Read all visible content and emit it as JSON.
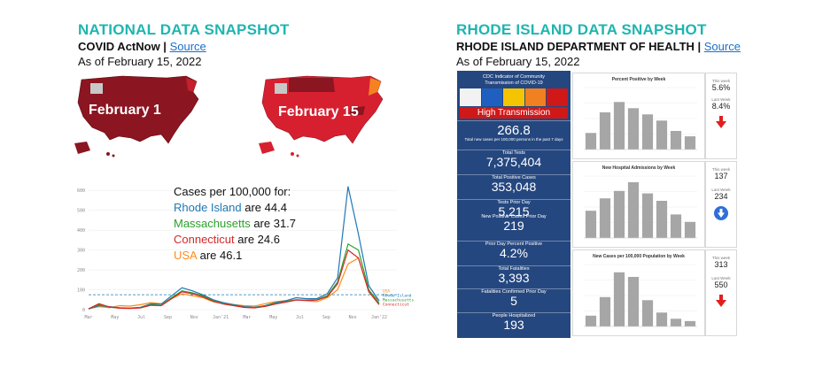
{
  "national": {
    "title": "NATIONAL DATA SNAPSHOT",
    "source_prefix": "COVID ActNow | ",
    "source_link": "Source",
    "as_of": "As of February 15, 2022",
    "map1_label": "February 1",
    "map2_label": "February 15",
    "legend_heading": "Cases per 100,000 for:",
    "legend": [
      {
        "state": "Rhode Island",
        "suffix": " are 44.4",
        "color": "#1f78b4"
      },
      {
        "state": "Massachusetts",
        "suffix": " are 31.7",
        "color": "#2ca02c"
      },
      {
        "state": "Connecticut",
        "suffix": " are 24.6",
        "color": "#d62728"
      },
      {
        "state": "USA",
        "suffix": " are 46.1",
        "color": "#ff8c1a"
      }
    ]
  },
  "chart_data": [
    {
      "type": "line",
      "title": "",
      "x_ticks": [
        "Mar",
        "May",
        "Jul",
        "Sep",
        "Nov",
        "Jan'21",
        "Mar",
        "May",
        "Jul",
        "Sep",
        "Nov",
        "Jan'22"
      ],
      "y_ticks": [
        "0",
        "100",
        "200",
        "300",
        "400",
        "500",
        "600"
      ],
      "ylim": [
        0,
        650
      ],
      "series": [
        {
          "name": "USA",
          "color": "#ff8c1a",
          "values": [
            5,
            15,
            10,
            20,
            18,
            25,
            35,
            30,
            55,
            80,
            70,
            60,
            40,
            30,
            25,
            20,
            18,
            30,
            40,
            45,
            50,
            45,
            40,
            60,
            100,
            230,
            260,
            90,
            46
          ]
        },
        {
          "name": "Rhode Island",
          "color": "#1f78b4",
          "values": [
            3,
            20,
            15,
            10,
            8,
            12,
            30,
            28,
            70,
            110,
            95,
            75,
            50,
            35,
            25,
            15,
            12,
            20,
            35,
            45,
            60,
            55,
            55,
            80,
            160,
            620,
            380,
            120,
            44
          ]
        },
        {
          "name": "Massachusetts",
          "color": "#2ca02c",
          "values": [
            4,
            25,
            12,
            8,
            7,
            10,
            25,
            22,
            60,
            95,
            85,
            70,
            45,
            30,
            22,
            12,
            10,
            18,
            30,
            40,
            50,
            48,
            50,
            70,
            140,
            330,
            300,
            100,
            32
          ]
        },
        {
          "name": "Connecticut",
          "color": "#d62728",
          "values": [
            4,
            30,
            14,
            7,
            6,
            9,
            22,
            20,
            55,
            90,
            80,
            65,
            42,
            28,
            20,
            11,
            9,
            16,
            28,
            38,
            48,
            46,
            48,
            65,
            130,
            300,
            260,
            90,
            25
          ]
        }
      ],
      "reference_line": 75
    },
    {
      "type": "bar",
      "title": "Percent Positive by Week",
      "values": [
        4,
        9,
        11.5,
        10,
        8.5,
        7,
        4.5,
        3.2
      ],
      "ylim": [
        0,
        15
      ]
    },
    {
      "type": "bar",
      "title": "New Hospital Admissions by Week",
      "values": [
        220,
        320,
        380,
        450,
        360,
        300,
        190,
        130
      ],
      "ylim": [
        0,
        500
      ]
    },
    {
      "type": "bar",
      "title": "New Cases per 100,000 Population by Week",
      "values": [
        700,
        1900,
        3500,
        3200,
        1700,
        900,
        500,
        350
      ],
      "ylim": [
        0,
        4000
      ]
    }
  ],
  "ri": {
    "title": "RHODE ISLAND DATA SNAPSHOT",
    "source_prefix": "RHODE ISLAND DEPARTMENT OF HEALTH | ",
    "source_link": "Source",
    "as_of": "As of February 15, 2022",
    "cdc_header": "CDC Indicator of Community Transmission of COVID-19",
    "transmission_level": "High Transmission",
    "stats": [
      {
        "label": "",
        "value": "266.8",
        "note": "Total new cases per 100,000 persons in the past 7 days"
      },
      {
        "label": "Total Tests",
        "value": "7,375,404"
      },
      {
        "label": "Total Positive Cases",
        "value": "353,048"
      },
      {
        "label": "Tests Prior Day",
        "value": "5,215"
      },
      {
        "label": "New Positive Cases Prior Day",
        "value": "219"
      },
      {
        "label": "Prior Day Percent Positive",
        "value": "4.2%"
      },
      {
        "label": "Total Fatalities",
        "value": "3,393"
      },
      {
        "label": "Fatalities Confirmed Prior Day",
        "value": "5"
      },
      {
        "label": "People Hospitalized",
        "value": "193"
      }
    ],
    "side": [
      {
        "this_week": "5.6%",
        "last_week": "8.4%",
        "arrow": "down",
        "arrow_color": "#e02020"
      },
      {
        "this_week": "137",
        "last_week": "234",
        "arrow": "down",
        "arrow_color": "#2f6fd6"
      },
      {
        "this_week": "313",
        "last_week": "550",
        "arrow": "down",
        "arrow_color": "#e02020"
      }
    ],
    "this_week_label": "This week",
    "last_week_label": "Last Week"
  }
}
